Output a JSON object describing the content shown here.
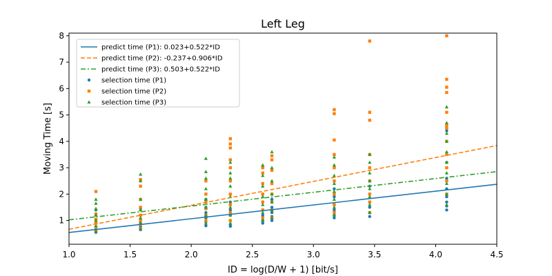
{
  "chart_data": {
    "type": "scatter",
    "title": "Left Leg",
    "xlabel": "ID = log(D/W + 1) [bit/s]",
    "ylabel": "Moving Time [s]",
    "xlim": [
      1.0,
      4.5
    ],
    "ylim": [
      0.1,
      8.1
    ],
    "xticks": [
      "1.0",
      "1.5",
      "2.0",
      "2.5",
      "3.0",
      "3.5",
      "4.0",
      "4.5"
    ],
    "yticks": [
      "1",
      "2",
      "3",
      "4",
      "5",
      "6",
      "7",
      "8"
    ],
    "grid": false,
    "legend_position": "top-left",
    "lines": [
      {
        "name": "predict time (P1): 0.023+0.522*ID",
        "intercept": 0.023,
        "slope": 0.522,
        "color": "#1f77b4",
        "style": "solid"
      },
      {
        "name": "predict time (P2): -0.237+0.906*ID",
        "intercept": -0.237,
        "slope": 0.906,
        "color": "#ff7f0e",
        "style": "dashed"
      },
      {
        "name": "predict time (P3): 0.503+0.522*ID",
        "intercept": 0.503,
        "slope": 0.522,
        "color": "#2ca02c",
        "style": "dashdot"
      }
    ],
    "series": [
      {
        "name": "selection time (P1)",
        "marker": "circle",
        "color": "#1f77b4",
        "points": [
          [
            1.22,
            0.55
          ],
          [
            1.22,
            0.65
          ],
          [
            1.22,
            0.75
          ],
          [
            1.22,
            0.9
          ],
          [
            1.22,
            1.05
          ],
          [
            1.22,
            1.2
          ],
          [
            1.22,
            1.4
          ],
          [
            1.585,
            0.65
          ],
          [
            1.585,
            0.78
          ],
          [
            1.585,
            0.9
          ],
          [
            1.585,
            1.05
          ],
          [
            1.585,
            1.2
          ],
          [
            1.585,
            1.45
          ],
          [
            2.12,
            0.8
          ],
          [
            2.12,
            0.95
          ],
          [
            2.12,
            1.1
          ],
          [
            2.12,
            1.3
          ],
          [
            2.12,
            1.5
          ],
          [
            2.12,
            1.8
          ],
          [
            2.32,
            0.78
          ],
          [
            2.32,
            0.85
          ],
          [
            2.32,
            1.0
          ],
          [
            2.32,
            1.2
          ],
          [
            2.32,
            1.4
          ],
          [
            2.32,
            1.7
          ],
          [
            2.585,
            0.9
          ],
          [
            2.585,
            1.0
          ],
          [
            2.585,
            1.2
          ],
          [
            2.585,
            1.4
          ],
          [
            2.585,
            1.7
          ],
          [
            2.585,
            2.0
          ],
          [
            2.66,
            1.0
          ],
          [
            2.66,
            1.15
          ],
          [
            2.66,
            1.3
          ],
          [
            2.66,
            1.5
          ],
          [
            2.66,
            1.8
          ],
          [
            3.17,
            1.1
          ],
          [
            3.17,
            1.2
          ],
          [
            3.17,
            1.4
          ],
          [
            3.17,
            1.6
          ],
          [
            3.17,
            1.9
          ],
          [
            3.17,
            2.2
          ],
          [
            3.46,
            1.15
          ],
          [
            3.46,
            1.3
          ],
          [
            3.46,
            1.5
          ],
          [
            3.46,
            1.7
          ],
          [
            3.46,
            2.0
          ],
          [
            3.46,
            2.3
          ],
          [
            4.09,
            1.4
          ],
          [
            4.09,
            1.55
          ],
          [
            4.09,
            1.7
          ],
          [
            4.09,
            1.9
          ],
          [
            4.09,
            2.2
          ],
          [
            4.09,
            2.6
          ],
          [
            4.09,
            3.2
          ],
          [
            4.09,
            4.4
          ]
        ]
      },
      {
        "name": "selection time (P2)",
        "marker": "square",
        "color": "#ff7f0e",
        "points": [
          [
            1.22,
            0.6
          ],
          [
            1.22,
            0.75
          ],
          [
            1.22,
            0.9
          ],
          [
            1.22,
            1.05
          ],
          [
            1.22,
            1.25
          ],
          [
            1.22,
            2.1
          ],
          [
            1.585,
            0.7
          ],
          [
            1.585,
            0.85
          ],
          [
            1.585,
            1.0
          ],
          [
            1.585,
            1.2
          ],
          [
            1.585,
            1.5
          ],
          [
            1.585,
            1.8
          ],
          [
            1.585,
            2.3
          ],
          [
            1.585,
            2.55
          ],
          [
            2.12,
            1.0
          ],
          [
            2.12,
            1.2
          ],
          [
            2.12,
            1.45
          ],
          [
            2.12,
            1.7
          ],
          [
            2.12,
            2.0
          ],
          [
            2.12,
            2.5
          ],
          [
            2.32,
            1.0
          ],
          [
            2.32,
            1.3
          ],
          [
            2.32,
            1.6
          ],
          [
            2.32,
            2.0
          ],
          [
            2.32,
            2.5
          ],
          [
            2.32,
            3.0
          ],
          [
            2.32,
            3.3
          ],
          [
            2.32,
            3.75
          ],
          [
            2.32,
            3.9
          ],
          [
            2.32,
            4.1
          ],
          [
            2.585,
            1.1
          ],
          [
            2.585,
            1.4
          ],
          [
            2.585,
            1.7
          ],
          [
            2.585,
            2.0
          ],
          [
            2.585,
            2.4
          ],
          [
            2.585,
            2.8
          ],
          [
            2.585,
            3.0
          ],
          [
            2.66,
            1.1
          ],
          [
            2.66,
            1.4
          ],
          [
            2.66,
            1.7
          ],
          [
            2.66,
            2.0
          ],
          [
            2.66,
            2.4
          ],
          [
            2.66,
            2.9
          ],
          [
            2.66,
            3.3
          ],
          [
            2.66,
            3.45
          ],
          [
            3.17,
            1.3
          ],
          [
            3.17,
            1.6
          ],
          [
            3.17,
            2.0
          ],
          [
            3.17,
            2.5
          ],
          [
            3.17,
            3.0
          ],
          [
            3.17,
            3.5
          ],
          [
            3.17,
            4.05
          ],
          [
            3.17,
            5.05
          ],
          [
            3.17,
            5.2
          ],
          [
            3.46,
            1.3
          ],
          [
            3.46,
            1.7
          ],
          [
            3.46,
            2.0
          ],
          [
            3.46,
            2.5
          ],
          [
            3.46,
            3.0
          ],
          [
            3.46,
            3.5
          ],
          [
            3.46,
            4.8
          ],
          [
            3.46,
            5.1
          ],
          [
            3.46,
            7.8
          ],
          [
            4.09,
            2.0
          ],
          [
            4.09,
            2.5
          ],
          [
            4.09,
            3.0
          ],
          [
            4.09,
            3.5
          ],
          [
            4.09,
            4.0
          ],
          [
            4.09,
            4.5
          ],
          [
            4.09,
            4.6
          ],
          [
            4.09,
            5.1
          ],
          [
            4.09,
            5.85
          ],
          [
            4.09,
            6.05
          ],
          [
            4.09,
            6.35
          ],
          [
            4.09,
            8.0
          ]
        ]
      },
      {
        "name": "selection time (P3)",
        "marker": "triangle",
        "color": "#2ca02c",
        "points": [
          [
            1.22,
            0.6
          ],
          [
            1.22,
            0.8
          ],
          [
            1.22,
            1.0
          ],
          [
            1.22,
            1.2
          ],
          [
            1.22,
            1.45
          ],
          [
            1.22,
            1.65
          ],
          [
            1.22,
            1.8
          ],
          [
            1.585,
            0.7
          ],
          [
            1.585,
            0.9
          ],
          [
            1.585,
            1.1
          ],
          [
            1.585,
            1.4
          ],
          [
            1.585,
            1.8
          ],
          [
            1.585,
            2.5
          ],
          [
            1.585,
            2.75
          ],
          [
            2.12,
            0.9
          ],
          [
            2.12,
            1.2
          ],
          [
            2.12,
            1.5
          ],
          [
            2.12,
            1.8
          ],
          [
            2.12,
            2.2
          ],
          [
            2.12,
            2.6
          ],
          [
            2.12,
            2.85
          ],
          [
            2.12,
            3.35
          ],
          [
            2.32,
            0.9
          ],
          [
            2.32,
            1.2
          ],
          [
            2.32,
            1.5
          ],
          [
            2.32,
            1.9
          ],
          [
            2.32,
            2.3
          ],
          [
            2.32,
            2.6
          ],
          [
            2.32,
            2.8
          ],
          [
            2.32,
            3.2
          ],
          [
            2.585,
            1.0
          ],
          [
            2.585,
            1.3
          ],
          [
            2.585,
            1.6
          ],
          [
            2.585,
            1.9
          ],
          [
            2.585,
            2.3
          ],
          [
            2.585,
            2.7
          ],
          [
            2.585,
            3.1
          ],
          [
            2.66,
            1.1
          ],
          [
            2.66,
            1.4
          ],
          [
            2.66,
            1.7
          ],
          [
            2.66,
            2.0
          ],
          [
            2.66,
            2.5
          ],
          [
            2.66,
            3.0
          ],
          [
            2.66,
            3.6
          ],
          [
            3.17,
            1.2
          ],
          [
            3.17,
            1.5
          ],
          [
            3.17,
            1.8
          ],
          [
            3.17,
            2.1
          ],
          [
            3.17,
            2.4
          ],
          [
            3.17,
            2.7
          ],
          [
            3.17,
            3.1
          ],
          [
            3.17,
            3.4
          ],
          [
            3.46,
            1.3
          ],
          [
            3.46,
            1.6
          ],
          [
            3.46,
            1.9
          ],
          [
            3.46,
            2.2
          ],
          [
            3.46,
            2.5
          ],
          [
            3.46,
            2.8
          ],
          [
            3.46,
            3.2
          ],
          [
            3.46,
            3.5
          ],
          [
            4.09,
            1.6
          ],
          [
            4.09,
            2.0
          ],
          [
            4.09,
            2.4
          ],
          [
            4.09,
            2.8
          ],
          [
            4.09,
            3.2
          ],
          [
            4.09,
            3.6
          ],
          [
            4.09,
            4.0
          ],
          [
            4.09,
            4.3
          ],
          [
            4.09,
            4.7
          ],
          [
            4.09,
            5.3
          ]
        ]
      }
    ]
  }
}
